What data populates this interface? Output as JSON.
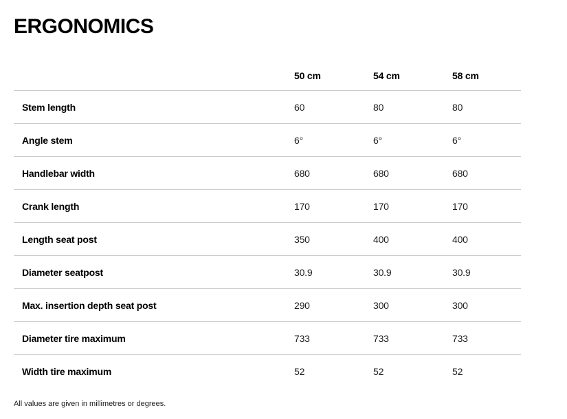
{
  "page": {
    "title": "ERGONOMICS",
    "footnote": "All values are given in millimetres or degrees."
  },
  "colors": {
    "divider": "#cccccc",
    "heading_text": "#000000",
    "value_text": "#1c1c1c",
    "background": "#ffffff"
  },
  "table": {
    "columns": [
      "50 cm",
      "54 cm",
      "58 cm"
    ],
    "rows": [
      {
        "label": "Stem length",
        "values": [
          "60",
          "80",
          "80"
        ]
      },
      {
        "label": "Angle stem",
        "values": [
          "6°",
          "6°",
          "6°"
        ]
      },
      {
        "label": "Handlebar width",
        "values": [
          "680",
          "680",
          "680"
        ]
      },
      {
        "label": "Crank length",
        "values": [
          "170",
          "170",
          "170"
        ]
      },
      {
        "label": "Length seat post",
        "values": [
          "350",
          "400",
          "400"
        ]
      },
      {
        "label": "Diameter seatpost",
        "values": [
          "30.9",
          "30.9",
          "30.9"
        ]
      },
      {
        "label": "Max. insertion depth seat post",
        "values": [
          "290",
          "300",
          "300"
        ]
      },
      {
        "label": "Diameter tire maximum",
        "values": [
          "733",
          "733",
          "733"
        ]
      },
      {
        "label": "Width tire maximum",
        "values": [
          "52",
          "52",
          "52"
        ]
      }
    ]
  }
}
